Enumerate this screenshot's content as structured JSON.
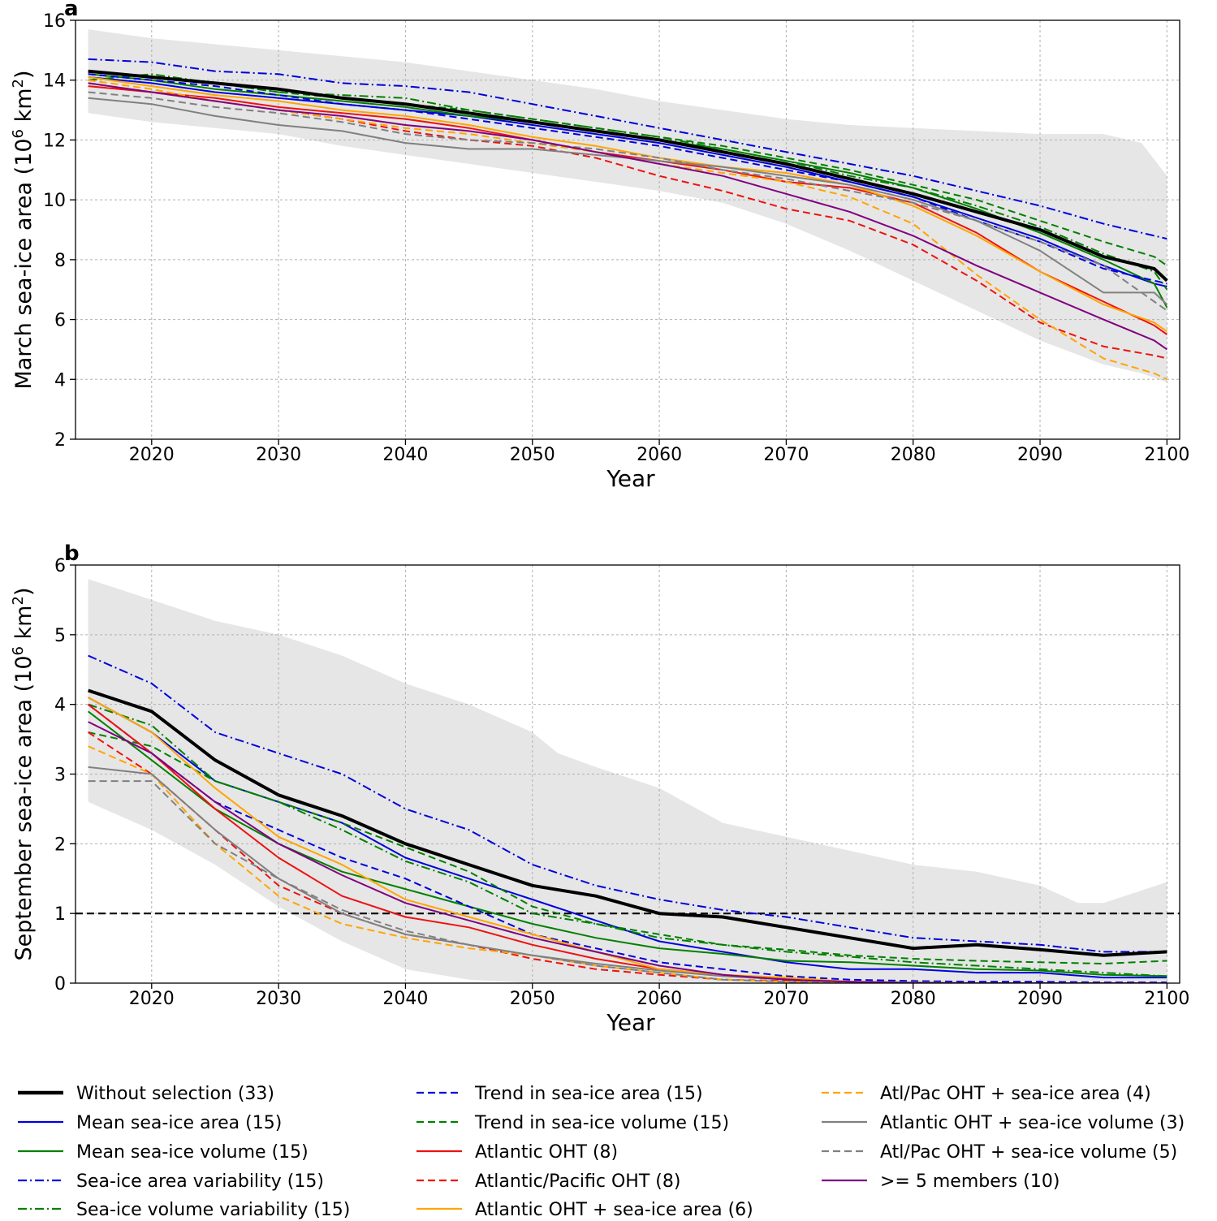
{
  "figure": {
    "panel_a_label": "a",
    "panel_b_label": "b"
  },
  "colors": {
    "black": "#000000",
    "blue": "#0000dd",
    "green": "#008000",
    "red": "#ee1111",
    "orange": "#ffa500",
    "gray": "#808080",
    "purple": "#800080",
    "envelope": "#e6e6e6",
    "grid": "#b0b0b0"
  },
  "legend": {
    "items": [
      {
        "label": "Without selection (33)",
        "color": "black",
        "dash": "solid",
        "bold": true
      },
      {
        "label": "Mean sea-ice area (15)",
        "color": "blue",
        "dash": "solid"
      },
      {
        "label": "Mean sea-ice volume (15)",
        "color": "green",
        "dash": "solid"
      },
      {
        "label": "Sea-ice area variability (15)",
        "color": "blue",
        "dash": "dashdot"
      },
      {
        "label": "Sea-ice volume variability (15)",
        "color": "green",
        "dash": "dashdot"
      },
      {
        "label": "Trend in sea-ice area (15)",
        "color": "blue",
        "dash": "dashed"
      },
      {
        "label": "Trend in sea-ice volume (15)",
        "color": "green",
        "dash": "dashed"
      },
      {
        "label": "Atlantic OHT (8)",
        "color": "red",
        "dash": "solid"
      },
      {
        "label": "Atlantic/Pacific OHT (8)",
        "color": "red",
        "dash": "dashed"
      },
      {
        "label": "Atlantic OHT + sea-ice area (6)",
        "color": "orange",
        "dash": "solid"
      },
      {
        "label": "Atl/Pac OHT + sea-ice area (4)",
        "color": "orange",
        "dash": "dashed"
      },
      {
        "label": "Atlantic OHT + sea-ice volume (3)",
        "color": "gray",
        "dash": "solid"
      },
      {
        "label": "Atl/Pac OHT + sea-ice volume (5)",
        "color": "gray",
        "dash": "dashed"
      },
      {
        "label": ">= 5 members (10)",
        "color": "purple",
        "dash": "solid"
      }
    ]
  },
  "chart_data": [
    {
      "type": "line",
      "panel": "a",
      "xlabel": "Year",
      "ylabel_main": "March sea-ice area (10",
      "ylabel_sup": "6",
      "ylabel_unit": " km",
      "ylabel_sup2": "2",
      "ylabel_close": ")",
      "xlim": [
        2014,
        2101
      ],
      "ylim": [
        2,
        16
      ],
      "xticks": [
        2020,
        2030,
        2040,
        2050,
        2060,
        2070,
        2080,
        2090,
        2100
      ],
      "yticks": [
        2,
        4,
        6,
        8,
        10,
        12,
        14,
        16
      ],
      "grid": true,
      "envelope": {
        "x": [
          2015,
          2020,
          2025,
          2030,
          2035,
          2040,
          2045,
          2050,
          2055,
          2060,
          2065,
          2070,
          2075,
          2080,
          2085,
          2090,
          2095,
          2098,
          2100
        ],
        "upper": [
          15.7,
          15.4,
          15.2,
          15.0,
          14.8,
          14.6,
          14.3,
          14.0,
          13.7,
          13.3,
          13.0,
          12.7,
          12.5,
          12.4,
          12.3,
          12.2,
          12.2,
          11.9,
          10.8
        ],
        "lower": [
          12.9,
          12.6,
          12.4,
          12.2,
          11.8,
          11.5,
          11.2,
          10.9,
          10.6,
          10.3,
          9.9,
          9.2,
          8.3,
          7.3,
          6.3,
          5.3,
          4.5,
          4.2,
          3.9
        ]
      },
      "x": [
        2015,
        2020,
        2025,
        2030,
        2035,
        2040,
        2045,
        2050,
        2055,
        2060,
        2065,
        2070,
        2075,
        2080,
        2085,
        2090,
        2095,
        2099,
        2100
      ],
      "series": [
        {
          "name": "Without selection (33)",
          "color": "black",
          "dash": "solid",
          "bold": true,
          "values": [
            14.3,
            14.1,
            13.9,
            13.7,
            13.4,
            13.2,
            12.9,
            12.6,
            12.3,
            12.0,
            11.6,
            11.2,
            10.7,
            10.2,
            9.6,
            9.0,
            8.1,
            7.7,
            7.3
          ]
        },
        {
          "name": "Mean sea-ice area (15)",
          "color": "blue",
          "dash": "solid",
          "values": [
            14.1,
            13.9,
            13.6,
            13.4,
            13.2,
            13.0,
            12.8,
            12.5,
            12.2,
            11.9,
            11.5,
            11.1,
            10.6,
            10.1,
            9.4,
            8.7,
            7.8,
            7.2,
            7.1
          ]
        },
        {
          "name": "Mean sea-ice volume (15)",
          "color": "green",
          "dash": "solid",
          "values": [
            14.2,
            14.0,
            13.7,
            13.5,
            13.3,
            13.1,
            12.8,
            12.6,
            12.3,
            12.0,
            11.7,
            11.3,
            10.9,
            10.4,
            9.7,
            8.9,
            8.0,
            7.2,
            6.4
          ]
        },
        {
          "name": "Sea-ice area variability (15)",
          "color": "blue",
          "dash": "dashdot",
          "values": [
            14.7,
            14.6,
            14.3,
            14.2,
            13.9,
            13.8,
            13.6,
            13.2,
            12.8,
            12.4,
            12.0,
            11.6,
            11.2,
            10.8,
            10.3,
            9.8,
            9.2,
            8.8,
            8.7
          ]
        },
        {
          "name": "Sea-ice volume variability (15)",
          "color": "green",
          "dash": "dashdot",
          "values": [
            14.0,
            14.2,
            13.9,
            13.6,
            13.5,
            13.4,
            13.0,
            12.7,
            12.4,
            12.1,
            11.7,
            11.3,
            10.8,
            10.4,
            9.8,
            9.1,
            8.2,
            7.6,
            7.0
          ]
        },
        {
          "name": "Trend in sea-ice area (15)",
          "color": "blue",
          "dash": "dashed",
          "values": [
            14.2,
            14.0,
            13.8,
            13.5,
            13.2,
            13.0,
            12.7,
            12.4,
            12.1,
            11.8,
            11.4,
            11.0,
            10.6,
            10.1,
            9.3,
            8.6,
            7.7,
            7.3,
            7.2
          ]
        },
        {
          "name": "Trend in sea-ice volume (15)",
          "color": "green",
          "dash": "dashed",
          "values": [
            14.3,
            14.1,
            13.9,
            13.6,
            13.4,
            13.2,
            13.0,
            12.7,
            12.4,
            12.1,
            11.8,
            11.4,
            11.0,
            10.5,
            10.0,
            9.3,
            8.6,
            8.1,
            7.8
          ]
        },
        {
          "name": "Atlantic OHT (8)",
          "color": "red",
          "dash": "solid",
          "values": [
            13.8,
            13.6,
            13.4,
            13.1,
            12.9,
            12.7,
            12.4,
            12.0,
            11.6,
            11.3,
            11.0,
            10.6,
            10.4,
            9.9,
            8.9,
            7.6,
            6.6,
            5.8,
            5.5
          ]
        },
        {
          "name": "Atlantic/Pacific OHT (8)",
          "color": "red",
          "dash": "dashed",
          "values": [
            13.9,
            13.6,
            13.3,
            13.0,
            12.7,
            12.3,
            12.0,
            11.8,
            11.4,
            10.8,
            10.3,
            9.7,
            9.3,
            8.5,
            7.3,
            5.9,
            5.1,
            4.8,
            4.7
          ]
        },
        {
          "name": "Atlantic OHT + sea-ice area (6)",
          "color": "orange",
          "dash": "solid",
          "values": [
            14.1,
            13.8,
            13.5,
            13.3,
            13.0,
            12.8,
            12.5,
            12.1,
            11.8,
            11.4,
            11.1,
            10.9,
            10.5,
            9.8,
            8.8,
            7.6,
            6.5,
            5.9,
            5.6
          ]
        },
        {
          "name": "Atl/Pac OHT + sea-ice area (4)",
          "color": "orange",
          "dash": "dashed",
          "values": [
            14.0,
            13.7,
            13.3,
            13.0,
            12.7,
            12.4,
            12.2,
            11.9,
            11.6,
            11.2,
            10.9,
            10.6,
            10.1,
            9.2,
            7.5,
            6.0,
            4.7,
            4.2,
            4.0
          ]
        },
        {
          "name": "Atlantic OHT + sea-ice volume (3)",
          "color": "gray",
          "dash": "solid",
          "values": [
            13.4,
            13.2,
            12.8,
            12.5,
            12.3,
            11.9,
            11.7,
            11.7,
            11.5,
            11.3,
            11.1,
            10.8,
            10.5,
            10.0,
            9.3,
            8.3,
            6.9,
            6.9,
            6.5
          ]
        },
        {
          "name": "Atl/Pac OHT + sea-ice volume (5)",
          "color": "gray",
          "dash": "dashed",
          "values": [
            13.6,
            13.4,
            13.1,
            12.9,
            12.6,
            12.2,
            12.0,
            11.9,
            11.7,
            11.4,
            11.0,
            10.7,
            10.3,
            9.9,
            9.3,
            8.6,
            7.8,
            6.6,
            6.3
          ]
        },
        {
          "name": ">= 5 members (10)",
          "color": "purple",
          "dash": "solid",
          "values": [
            13.9,
            13.6,
            13.3,
            13.0,
            12.8,
            12.5,
            12.3,
            12.0,
            11.6,
            11.2,
            10.8,
            10.2,
            9.6,
            8.8,
            7.8,
            6.9,
            6.0,
            5.3,
            5.0
          ]
        }
      ]
    },
    {
      "type": "line",
      "panel": "b",
      "xlabel": "Year",
      "ylabel_main": "September sea-ice area (10",
      "ylabel_sup": "6",
      "ylabel_unit": " km",
      "ylabel_sup2": "2",
      "ylabel_close": ")",
      "xlim": [
        2014,
        2101
      ],
      "ylim": [
        0,
        6
      ],
      "xticks": [
        2020,
        2030,
        2040,
        2050,
        2060,
        2070,
        2080,
        2090,
        2100
      ],
      "yticks": [
        0,
        1,
        2,
        3,
        4,
        5,
        6
      ],
      "grid": true,
      "threshold_line": 1,
      "envelope": {
        "x": [
          2015,
          2020,
          2025,
          2030,
          2035,
          2040,
          2045,
          2050,
          2052,
          2055,
          2060,
          2065,
          2070,
          2075,
          2080,
          2085,
          2090,
          2093,
          2095,
          2100
        ],
        "upper": [
          5.8,
          5.5,
          5.2,
          5.0,
          4.7,
          4.3,
          4.0,
          3.6,
          3.3,
          3.1,
          2.8,
          2.3,
          2.1,
          1.9,
          1.7,
          1.6,
          1.4,
          1.15,
          1.15,
          1.45
        ],
        "lower": [
          2.6,
          2.2,
          1.7,
          1.1,
          0.6,
          0.2,
          0.05,
          0.0,
          0.0,
          0.0,
          0.0,
          0.0,
          0.0,
          0.0,
          0.0,
          0.0,
          0.0,
          0.0,
          0.0,
          0.0
        ]
      },
      "x": [
        2015,
        2020,
        2025,
        2030,
        2035,
        2040,
        2045,
        2050,
        2055,
        2060,
        2065,
        2070,
        2075,
        2080,
        2085,
        2090,
        2095,
        2100
      ],
      "series": [
        {
          "name": "Without selection (33)",
          "color": "black",
          "dash": "solid",
          "bold": true,
          "values": [
            4.2,
            3.9,
            3.2,
            2.7,
            2.4,
            2.0,
            1.7,
            1.4,
            1.25,
            1.0,
            0.95,
            0.8,
            0.65,
            0.5,
            0.55,
            0.48,
            0.4,
            0.45
          ]
        },
        {
          "name": "Mean sea-ice area (15)",
          "color": "blue",
          "dash": "solid",
          "values": [
            4.1,
            3.6,
            2.9,
            2.6,
            2.3,
            1.8,
            1.5,
            1.2,
            0.9,
            0.6,
            0.45,
            0.3,
            0.2,
            0.2,
            0.15,
            0.15,
            0.08,
            0.08
          ]
        },
        {
          "name": "Mean sea-ice volume (15)",
          "color": "green",
          "dash": "solid",
          "values": [
            3.9,
            3.2,
            2.5,
            2.0,
            1.6,
            1.35,
            1.1,
            0.85,
            0.65,
            0.5,
            0.42,
            0.32,
            0.3,
            0.25,
            0.2,
            0.18,
            0.12,
            0.1
          ]
        },
        {
          "name": "Sea-ice area variability (15)",
          "color": "blue",
          "dash": "dashdot",
          "values": [
            4.7,
            4.3,
            3.6,
            3.3,
            3.0,
            2.5,
            2.2,
            1.7,
            1.4,
            1.2,
            1.05,
            0.95,
            0.8,
            0.65,
            0.6,
            0.55,
            0.45,
            0.45
          ]
        },
        {
          "name": "Sea-ice volume variability (15)",
          "color": "green",
          "dash": "dashdot",
          "values": [
            4.0,
            3.7,
            2.9,
            2.6,
            2.2,
            1.75,
            1.45,
            1.0,
            0.85,
            0.65,
            0.55,
            0.45,
            0.38,
            0.3,
            0.25,
            0.2,
            0.15,
            0.1
          ]
        },
        {
          "name": "Trend in sea-ice area (15)",
          "color": "blue",
          "dash": "dashed",
          "values": [
            4.0,
            3.3,
            2.6,
            2.2,
            1.8,
            1.5,
            1.1,
            0.7,
            0.5,
            0.3,
            0.2,
            0.1,
            0.05,
            0.03,
            0.02,
            0.02,
            0.01,
            0.01
          ]
        },
        {
          "name": "Trend in sea-ice volume (15)",
          "color": "green",
          "dash": "dashed",
          "values": [
            3.6,
            3.4,
            2.9,
            2.6,
            2.3,
            1.95,
            1.6,
            1.1,
            0.85,
            0.7,
            0.55,
            0.48,
            0.4,
            0.35,
            0.32,
            0.3,
            0.28,
            0.32
          ]
        },
        {
          "name": "Atlantic OHT (8)",
          "color": "red",
          "dash": "solid",
          "values": [
            4.0,
            3.3,
            2.5,
            1.8,
            1.25,
            0.95,
            0.8,
            0.55,
            0.35,
            0.2,
            0.12,
            0.06,
            0.02,
            0.01,
            0.0,
            0.0,
            0.0,
            0.0
          ]
        },
        {
          "name": "Atlantic/Pacific OHT (8)",
          "color": "red",
          "dash": "dashed",
          "values": [
            3.6,
            3.0,
            2.2,
            1.4,
            1.0,
            0.7,
            0.55,
            0.35,
            0.2,
            0.12,
            0.05,
            0.03,
            0.01,
            0.0,
            0.0,
            0.0,
            0.0,
            0.0
          ]
        },
        {
          "name": "Atlantic OHT + sea-ice area (6)",
          "color": "orange",
          "dash": "solid",
          "values": [
            4.1,
            3.6,
            2.8,
            2.1,
            1.7,
            1.2,
            0.95,
            0.7,
            0.45,
            0.2,
            0.12,
            0.08,
            0.02,
            0.0,
            0.0,
            0.0,
            0.0,
            0.0
          ]
        },
        {
          "name": "Atl/Pac OHT + sea-ice area (4)",
          "color": "orange",
          "dash": "dashed",
          "values": [
            3.4,
            3.0,
            2.0,
            1.25,
            0.85,
            0.65,
            0.5,
            0.4,
            0.25,
            0.15,
            0.05,
            0.02,
            0.0,
            0.0,
            0.0,
            0.0,
            0.0,
            0.0
          ]
        },
        {
          "name": "Atlantic OHT + sea-ice volume (3)",
          "color": "gray",
          "dash": "solid",
          "values": [
            3.1,
            3.0,
            2.2,
            1.5,
            1.0,
            0.7,
            0.55,
            0.4,
            0.28,
            0.18,
            0.1,
            0.05,
            0.02,
            0.01,
            0.0,
            0.0,
            0.0,
            0.0
          ]
        },
        {
          "name": "Atl/Pac OHT + sea-ice volume (5)",
          "color": "gray",
          "dash": "dashed",
          "values": [
            2.9,
            2.9,
            2.0,
            1.5,
            1.05,
            0.75,
            0.55,
            0.4,
            0.25,
            0.15,
            0.05,
            0.02,
            0.0,
            0.0,
            0.0,
            0.0,
            0.0,
            0.0
          ]
        },
        {
          "name": ">= 5 members (10)",
          "color": "purple",
          "dash": "solid",
          "values": [
            3.75,
            3.3,
            2.6,
            2.0,
            1.55,
            1.15,
            0.9,
            0.65,
            0.45,
            0.25,
            0.12,
            0.05,
            0.02,
            0.0,
            0.0,
            0.0,
            0.0,
            0.0
          ]
        }
      ]
    }
  ]
}
